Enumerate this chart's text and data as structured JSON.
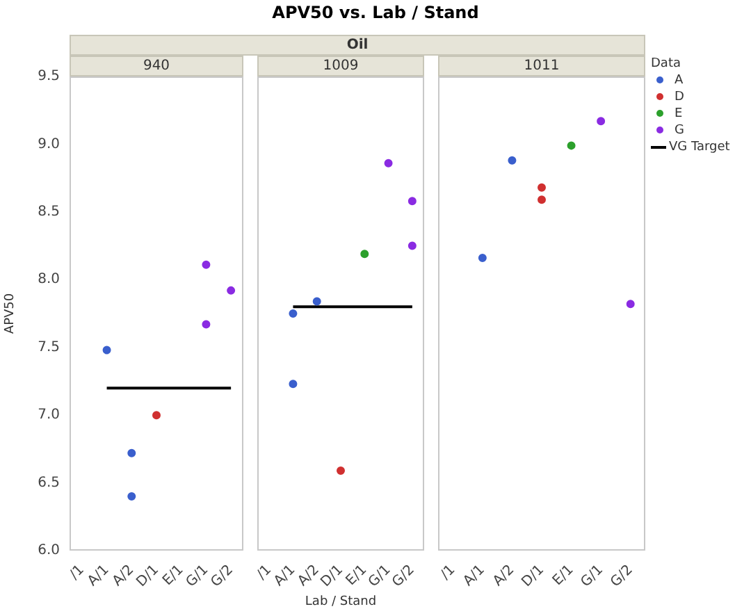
{
  "chart_data": [
    {
      "type": "scatter",
      "title": "940",
      "annotations": [
        "APV50 vs. Lab / Stand",
        "Oil"
      ],
      "ylabel": "APV50",
      "marker": "circle",
      "categories": [
        "/1",
        "A/1",
        "A/2",
        "D/1",
        "E/1",
        "G/1",
        "G/2"
      ],
      "ylim": [
        6,
        9.5
      ],
      "yticks": [
        {
          "value": 6,
          "label": "6.0"
        },
        {
          "value": 6.5,
          "label": "6.5"
        },
        {
          "value": 7,
          "label": "7.0"
        },
        {
          "value": 7.5,
          "label": "7.5"
        },
        {
          "value": 8,
          "label": "8.0"
        },
        {
          "value": 8.5,
          "label": "8.5"
        },
        {
          "value": 9,
          "label": "9.0"
        },
        {
          "value": 9.5,
          "label": "9.5"
        }
      ],
      "series": [
        {
          "color": "#3a5fcd",
          "x": [
            "A/1",
            "A/2",
            "A/2"
          ],
          "values": [
            7.48,
            6.72,
            6.4
          ]
        },
        {
          "color": "#d03030",
          "x": [
            "D/1"
          ],
          "values": [
            7.0
          ]
        },
        {
          "color": "#8a2be2",
          "x": [
            "G/1",
            "G/1",
            "G/2"
          ],
          "values": [
            8.11,
            7.67,
            7.92
          ]
        },
        {
          "type": "line",
          "color": "#000000",
          "marker": "none",
          "values": [
            null,
            7.2,
            7.2,
            7.2,
            7.2,
            7.2,
            7.2
          ]
        }
      ]
    },
    {
      "type": "scatter",
      "title": "1009",
      "xlabel": "Lab / Stand",
      "marker": "circle",
      "tick_labels": "x",
      "categories": [
        "/1",
        "A/1",
        "A/2",
        "D/1",
        "E/1",
        "G/1",
        "G/2"
      ],
      "ylim": [
        6,
        9.5
      ],
      "series": [
        {
          "color": "#3a5fcd",
          "x": [
            "A/1",
            "A/1",
            "A/2"
          ],
          "values": [
            7.75,
            7.23,
            7.84
          ]
        },
        {
          "color": "#d03030",
          "x": [
            "D/1"
          ],
          "values": [
            6.59
          ]
        },
        {
          "color": "#2ca02c",
          "x": [
            "E/1"
          ],
          "values": [
            8.19
          ]
        },
        {
          "color": "#8a2be2",
          "x": [
            "G/1",
            "G/2",
            "G/2"
          ],
          "values": [
            8.86,
            8.58,
            8.25
          ]
        },
        {
          "type": "line",
          "color": "#000000",
          "marker": "none",
          "values": [
            null,
            7.8,
            7.8,
            7.8,
            7.8,
            7.8,
            7.8
          ]
        }
      ]
    },
    {
      "type": "scatter",
      "title": "1011",
      "marker": "circle",
      "tick_labels": "x",
      "legend": "top right",
      "legend_title": "Data",
      "categories": [
        "/1",
        "A/1",
        "A/2",
        "D/1",
        "E/1",
        "G/1",
        "G/2"
      ],
      "ylim": [
        6,
        9.5
      ],
      "series": [
        {
          "name": "A",
          "color": "#3a5fcd",
          "x": [
            "A/1",
            "A/2"
          ],
          "values": [
            8.16,
            8.88
          ]
        },
        {
          "name": "D",
          "color": "#d03030",
          "x": [
            "D/1",
            "D/1"
          ],
          "values": [
            8.68,
            8.59
          ]
        },
        {
          "name": "E",
          "color": "#2ca02c",
          "x": [
            "E/1"
          ],
          "values": [
            8.99
          ]
        },
        {
          "name": "G",
          "color": "#8a2be2",
          "x": [
            "G/1",
            "G/2"
          ],
          "values": [
            9.17,
            7.82
          ]
        },
        {
          "type": "line",
          "name": "VG Target",
          "color": "#000000",
          "marker": "none",
          "values": [
            null,
            null,
            null,
            null,
            null,
            null,
            null
          ]
        }
      ]
    }
  ]
}
